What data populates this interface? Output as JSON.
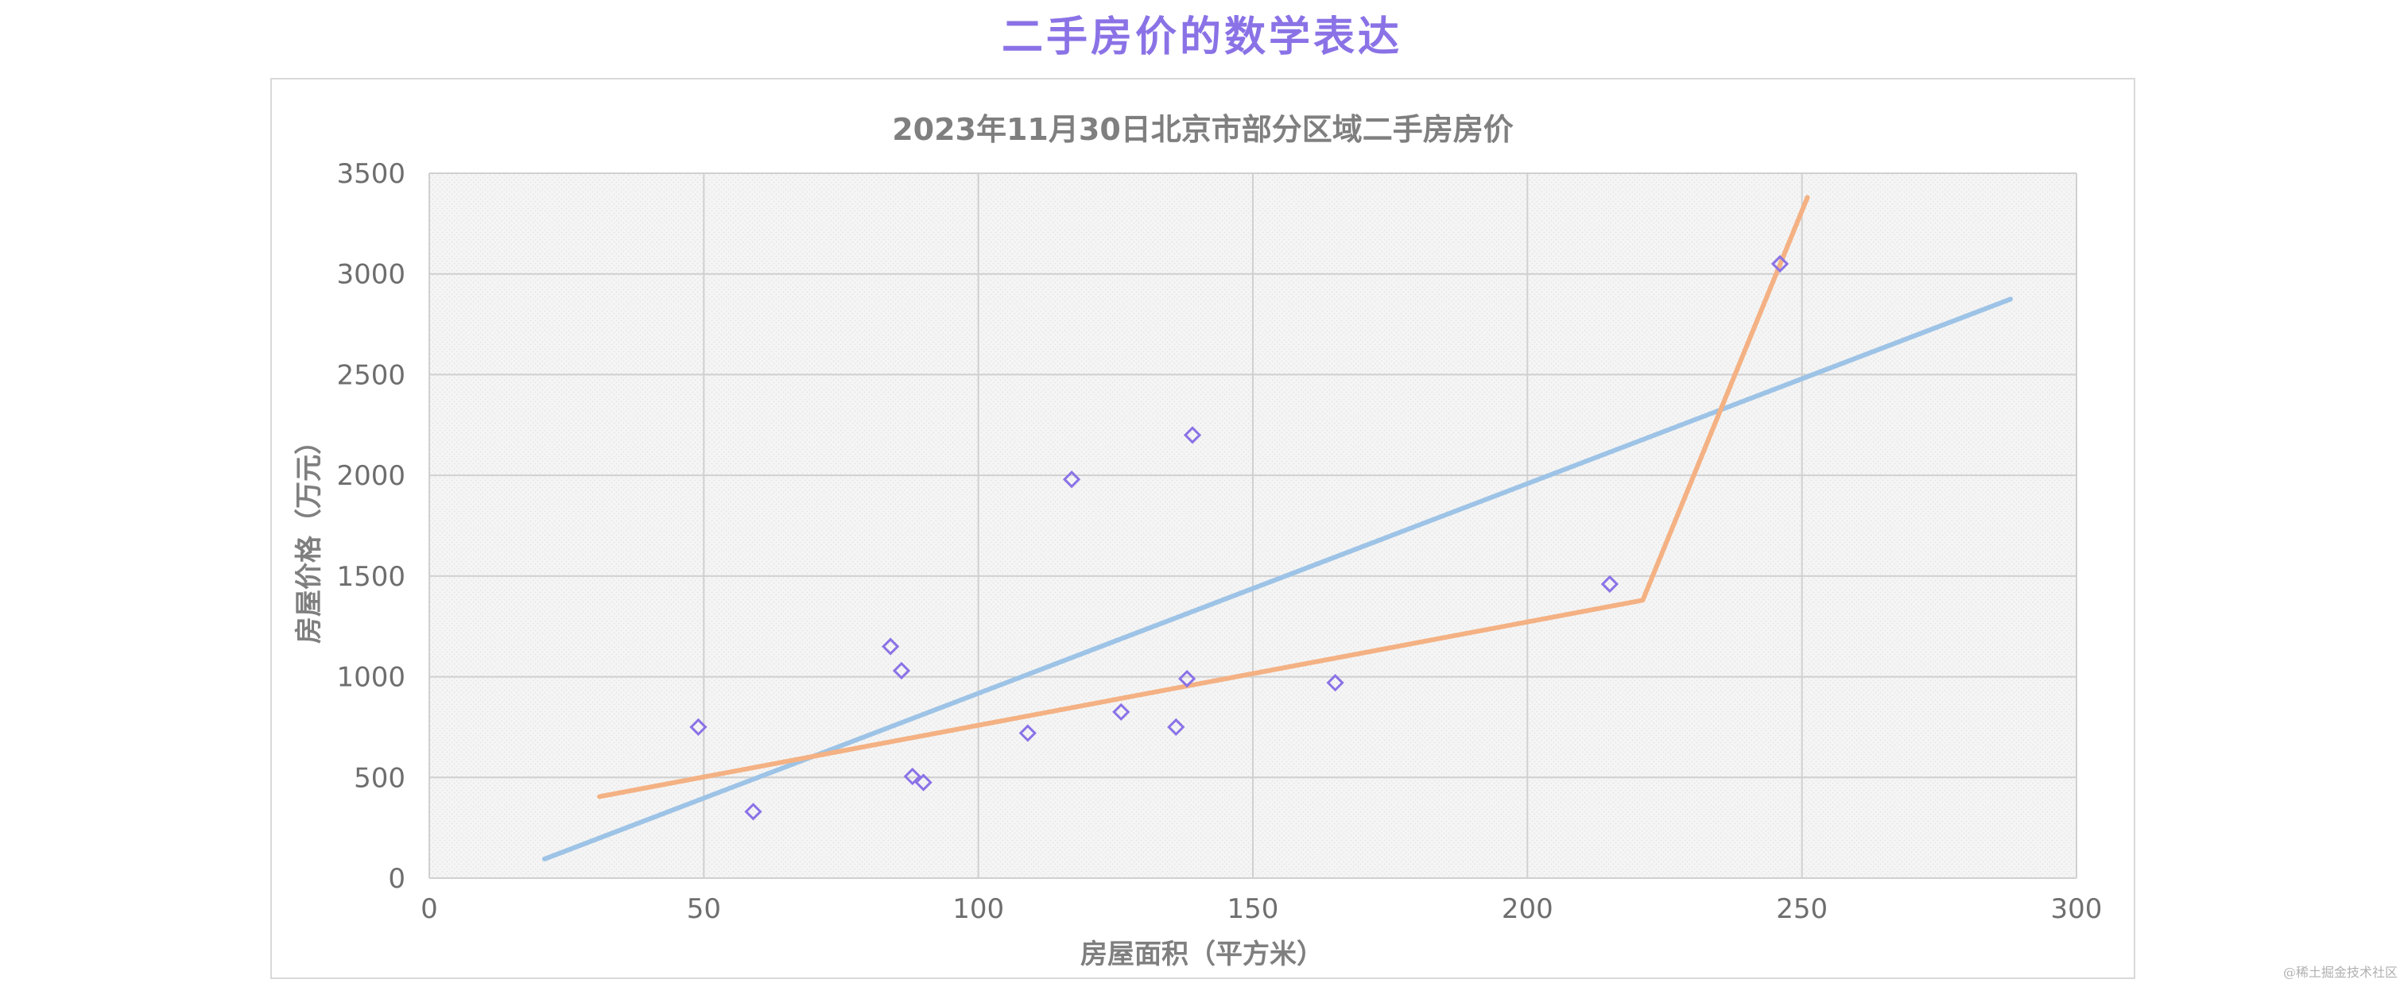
{
  "page": {
    "title": "二手房价的数学表达",
    "watermark": "@稀土掘金技术社区"
  },
  "chart_data": {
    "type": "scatter",
    "title": "2023年11月30日北京市部分区域二手房房价",
    "xlabel": "房屋面积（平方米）",
    "ylabel": "房屋价格（万元）",
    "xlim": [
      0,
      300
    ],
    "ylim": [
      0,
      3500
    ],
    "x_ticks": [
      "0",
      "50",
      "100",
      "150",
      "200",
      "250",
      "300"
    ],
    "y_ticks": [
      "0",
      "500",
      "1000",
      "1500",
      "2000",
      "2500",
      "3000",
      "3500"
    ],
    "grid": true,
    "legend": "none",
    "series": [
      {
        "type": "scatter",
        "marker": "diamond-outline",
        "color": "#8a72e6",
        "points": [
          {
            "x": 49,
            "y": 750
          },
          {
            "x": 59,
            "y": 330
          },
          {
            "x": 84,
            "y": 1150
          },
          {
            "x": 86,
            "y": 1030
          },
          {
            "x": 88,
            "y": 505
          },
          {
            "x": 90,
            "y": 475
          },
          {
            "x": 109,
            "y": 720
          },
          {
            "x": 117,
            "y": 1980
          },
          {
            "x": 126,
            "y": 825
          },
          {
            "x": 136,
            "y": 750
          },
          {
            "x": 138,
            "y": 990
          },
          {
            "x": 139,
            "y": 2200
          },
          {
            "x": 165,
            "y": 970
          },
          {
            "x": 215,
            "y": 1460
          },
          {
            "x": 246,
            "y": 3050
          }
        ]
      },
      {
        "type": "line",
        "color": "#9dc3e6",
        "points": [
          {
            "x": 21,
            "y": 95
          },
          {
            "x": 288,
            "y": 2875
          }
        ]
      },
      {
        "type": "line",
        "color": "#f4b183",
        "points": [
          {
            "x": 31,
            "y": 405
          },
          {
            "x": 221,
            "y": 1380
          },
          {
            "x": 251,
            "y": 3380
          }
        ]
      }
    ]
  }
}
